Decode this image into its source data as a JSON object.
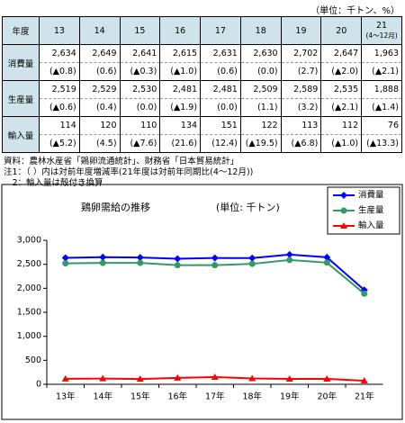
{
  "unit": "（単位：千トン、%）",
  "table": {
    "header": [
      "年度",
      "13",
      "14",
      "15",
      "16",
      "17",
      "18",
      "19",
      "20",
      "21"
    ],
    "header_sub": "(4～12月)",
    "rows": [
      {
        "label": "消費量",
        "values": [
          "2,634",
          "2,649",
          "2,641",
          "2,615",
          "2,631",
          "2,630",
          "2,702",
          "2,647",
          "1,963"
        ],
        "changes": [
          "(▲0.8)",
          "(0.6)",
          "(▲0.3)",
          "(▲1.0)",
          "(0.6)",
          "(0.0)",
          "(2.7)",
          "(▲2.0)",
          "(▲2.1)"
        ]
      },
      {
        "label": "生産量",
        "values": [
          "2,519",
          "2,529",
          "2,530",
          "2,481",
          "2,481",
          "2,509",
          "2,589",
          "2,535",
          "1,888"
        ],
        "changes": [
          "(▲0.6)",
          "(0.4)",
          "(0.0)",
          "(▲1.9)",
          "(0.0)",
          "(1.1)",
          "(3.2)",
          "(▲2.1)",
          "(▲1.4)"
        ]
      },
      {
        "label": "輸入量",
        "values": [
          "114",
          "120",
          "110",
          "134",
          "151",
          "122",
          "113",
          "112",
          "76"
        ],
        "changes": [
          "(▲5.2)",
          "(4.5)",
          "(▲7.6)",
          "(21.6)",
          "(12.4)",
          "(▲19.5)",
          "(▲6.8)",
          "(▲1.0)",
          "(▲13.3)"
        ]
      }
    ]
  },
  "notes": [
    "資料：農林水産省「鶏卵流通統計」、財務省「日本貿易統計」",
    "注1：（ ）内は対前年度増減率(21年度は対前年同期比(4～12月))",
    "　2：輸入量は殻付き換算"
  ],
  "chart_data": {
    "type": "line",
    "title": "鶏卵需給の推移",
    "subtitle": "(単位: 千トン)",
    "categories": [
      "13年",
      "14年",
      "15年",
      "16年",
      "17年",
      "18年",
      "19年",
      "20年",
      "21年"
    ],
    "series": [
      {
        "name": "消費量",
        "color": "#0000ff",
        "marker": "diamond",
        "values": [
          2634,
          2649,
          2641,
          2615,
          2631,
          2630,
          2702,
          2647,
          1963
        ]
      },
      {
        "name": "生産量",
        "color": "#339966",
        "marker": "circle",
        "values": [
          2519,
          2529,
          2530,
          2481,
          2481,
          2509,
          2589,
          2535,
          1888
        ]
      },
      {
        "name": "輸入量",
        "color": "#ff0000",
        "marker": "triangle",
        "values": [
          114,
          120,
          110,
          134,
          151,
          122,
          113,
          112,
          76
        ]
      }
    ],
    "ylim": [
      0,
      3000
    ],
    "yticks": [
      0,
      500,
      {
        "value": 1000,
        "label": "1,000"
      },
      {
        "value": 1500,
        "label": "1,500"
      },
      {
        "value": 2000,
        "label": "2,000"
      },
      {
        "value": 2500,
        "label": "2,500"
      },
      {
        "value": 3000,
        "label": "3,000"
      }
    ],
    "legend": "top-right"
  }
}
